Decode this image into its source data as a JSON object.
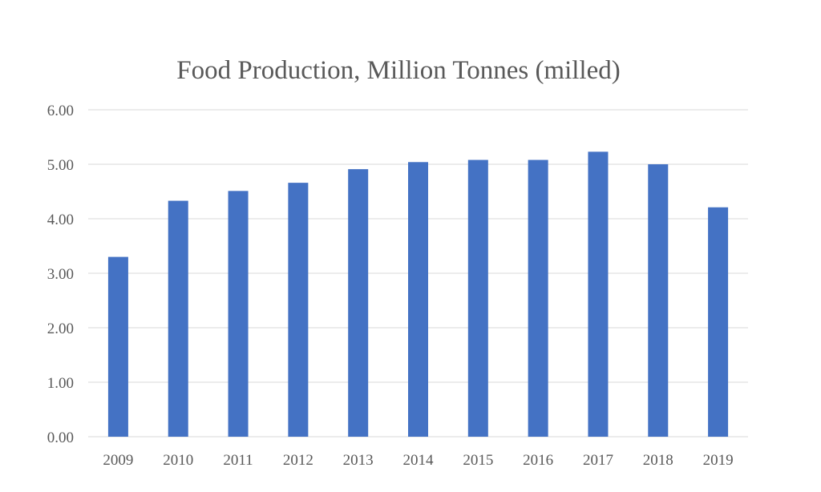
{
  "chart_data": {
    "type": "bar",
    "title": "Food Production, Million Tonnes (milled)",
    "xlabel": "",
    "ylabel": "",
    "categories": [
      "2009",
      "2010",
      "2011",
      "2012",
      "2013",
      "2014",
      "2015",
      "2016",
      "2017",
      "2018",
      "2019"
    ],
    "series": [
      {
        "values": [
          3.3,
          4.33,
          4.51,
          4.66,
          4.91,
          5.04,
          5.08,
          5.08,
          5.23,
          5.0,
          4.21
        ],
        "color": "#4472c4"
      }
    ],
    "ylim": [
      0,
      6
    ],
    "yticks": [
      "0.00",
      "1.00",
      "2.00",
      "3.00",
      "4.00",
      "5.00",
      "6.00"
    ],
    "grid": true,
    "legend": "none"
  }
}
